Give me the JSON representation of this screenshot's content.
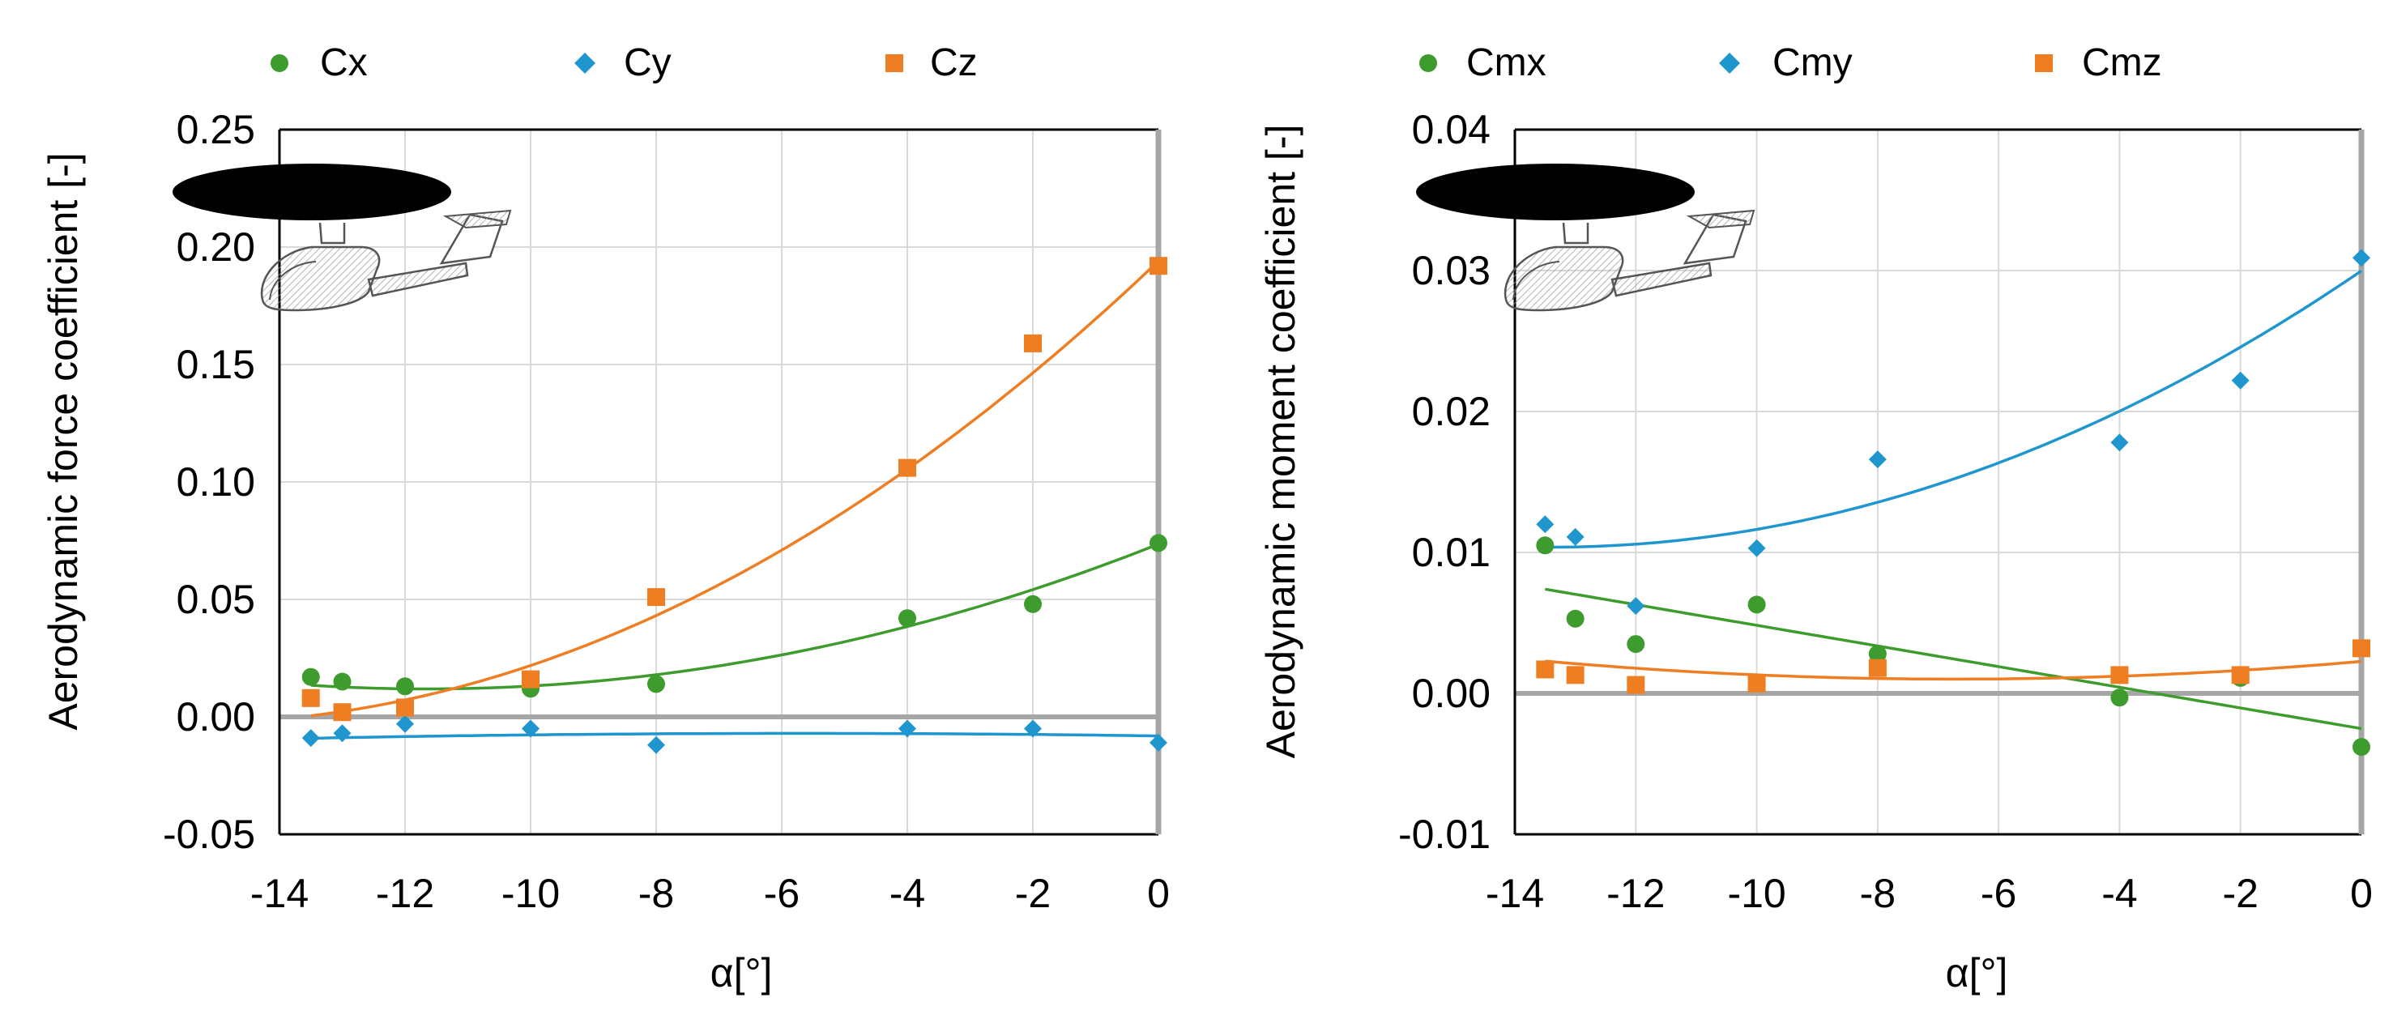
{
  "colors": {
    "green": "#3E9B2E",
    "blue": "#1F96CE",
    "orange": "#EF7D22",
    "grid": "#D9D9D9",
    "zero_line": "#A6A6A6",
    "axis": "#000000"
  },
  "chart_data": [
    {
      "type": "scatter",
      "title": "",
      "xlabel": "α[°]",
      "ylabel": "Aerodynamic force coefficient [-]",
      "xlim": [
        -14,
        0
      ],
      "ylim": [
        -0.05,
        0.25
      ],
      "xticks": [
        -14,
        -12,
        -10,
        -8,
        -6,
        -4,
        -2,
        0
      ],
      "xtick_labels": [
        "-14",
        "-12",
        "-10",
        "-8",
        "-6",
        "-4",
        "-2",
        "0"
      ],
      "yticks": [
        -0.05,
        0,
        0.05,
        0.1,
        0.15,
        0.2,
        0.25
      ],
      "ytick_labels": [
        "-0.05",
        "0.00",
        "0.05",
        "0.10",
        "0.15",
        "0.20",
        "0.25"
      ],
      "grid": true,
      "legend_position": "top",
      "inset": "aircraft-sketch",
      "x": [
        -13.5,
        -13,
        -12,
        -10,
        -8,
        -4,
        -2,
        0
      ],
      "series": [
        {
          "name": "Cx",
          "marker": "circle",
          "color": "#3E9B2E",
          "values": [
            0.017,
            0.015,
            0.013,
            0.012,
            0.014,
            0.042,
            0.048,
            0.074
          ],
          "trend": [
            0.0004545,
            0.010585,
            0.07353
          ]
        },
        {
          "name": "Cy",
          "marker": "diamond",
          "color": "#1F96CE",
          "values": [
            -0.009,
            -0.007,
            -0.003,
            -0.005,
            -0.012,
            -0.005,
            -0.005,
            -0.011
          ],
          "trend": [
            -3.38e-05,
            -0.000384,
            -0.00813
          ]
        },
        {
          "name": "Cz",
          "marker": "square",
          "color": "#EF7D22",
          "values": [
            0.008,
            0.002,
            0.004,
            0.016,
            0.051,
            0.106,
            0.159,
            0.192
          ],
          "trend": [
            0.0008226,
            0.025442,
            0.19402
          ]
        }
      ]
    },
    {
      "type": "scatter",
      "title": "",
      "xlabel": "α[°]",
      "ylabel": "Aerodynamic moment coefficient [-]",
      "xlim": [
        -14,
        0
      ],
      "ylim": [
        -0.01,
        0.04
      ],
      "xticks": [
        -14,
        -12,
        -10,
        -8,
        -6,
        -4,
        -2,
        0
      ],
      "xtick_labels": [
        "-14",
        "-12",
        "-10",
        "-8",
        "-6",
        "-4",
        "-2",
        "0"
      ],
      "yticks": [
        -0.01,
        0,
        0.01,
        0.02,
        0.03,
        0.04
      ],
      "ytick_labels": [
        "-0.01",
        "0.00",
        "0.01",
        "0.02",
        "0.03",
        "0.04"
      ],
      "grid": true,
      "legend_position": "top",
      "inset": "aircraft-sketch",
      "x": [
        -13.5,
        -13,
        -12,
        -10,
        -8,
        -4,
        -2,
        0
      ],
      "series": [
        {
          "name": "Cmx",
          "marker": "circle",
          "color": "#3E9B2E",
          "values": [
            0.0105,
            0.0053,
            0.0035,
            0.0063,
            0.0028,
            -0.0003,
            0.0011,
            -0.0038
          ],
          "trend": [
            0,
            -0.000733,
            -0.0025
          ]
        },
        {
          "name": "Cmy",
          "marker": "diamond",
          "color": "#1F96CE",
          "values": [
            0.012,
            0.0111,
            0.0062,
            0.0103,
            0.0166,
            0.0178,
            0.0222,
            0.0309
          ],
          "trend": [
            0.0001092,
            0.0029265,
            0.02998
          ]
        },
        {
          "name": "Cmz",
          "marker": "square",
          "color": "#EF7D22",
          "values": [
            0.0017,
            0.0013,
            0.0006,
            0.0007,
            0.0018,
            0.0013,
            0.0013,
            0.0032
          ],
          "trend": [
            2.78e-05,
            0.000374,
            0.00227
          ]
        }
      ]
    }
  ]
}
